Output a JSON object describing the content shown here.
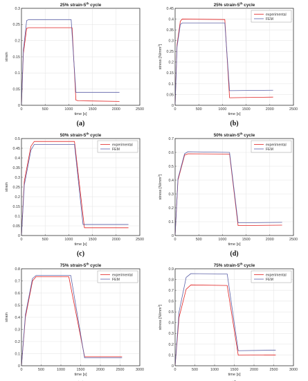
{
  "chart_data": [
    {
      "type": "line",
      "caption": "(a)",
      "title": "25% strain-5",
      "title_sup": "th",
      "title_suffix": " cycle",
      "xlabel": "time [s]",
      "ylabel": "strain",
      "xlim": [
        0,
        2500
      ],
      "ylim": [
        0,
        0.3
      ],
      "xticks": [
        0,
        500,
        1000,
        1500,
        2000,
        2500
      ],
      "yticks": [
        0,
        0.05,
        0.1,
        0.15,
        0.2,
        0.25,
        0.3
      ],
      "grid": true,
      "legend_position": "none",
      "series": [
        {
          "name": "experimental",
          "color": "#e02020",
          "x": [
            0,
            40,
            110,
            150,
            1070,
            1150,
            1200,
            2070
          ],
          "y": [
            0,
            0.16,
            0.238,
            0.24,
            0.24,
            0.016,
            0.014,
            0.012
          ]
        },
        {
          "name": "FEM",
          "color": "#5a5fa6",
          "x": [
            0,
            40,
            110,
            150,
            1050,
            1150,
            2070
          ],
          "y": [
            0,
            0.17,
            0.262,
            0.265,
            0.265,
            0.04,
            0.04
          ]
        }
      ]
    },
    {
      "type": "line",
      "caption": "(b)",
      "title": "25% strain-5",
      "title_sup": "th",
      "title_suffix": " cycle",
      "xlabel": "time [s]",
      "ylabel": "stress [N/mm",
      "ylabel_sup": "2",
      "ylabel_suffix": "]",
      "xlim": [
        0,
        2500
      ],
      "ylim": [
        0,
        0.45
      ],
      "xticks": [
        0,
        500,
        1000,
        1500,
        2000,
        2500
      ],
      "yticks": [
        0,
        0.05,
        0.1,
        0.15,
        0.2,
        0.25,
        0.3,
        0.35,
        0.4,
        0.45
      ],
      "grid": true,
      "legend_position": "top-right",
      "series": [
        {
          "name": "experimental",
          "color": "#e02020",
          "x": [
            0,
            40,
            110,
            150,
            1050,
            1150,
            2070
          ],
          "y": [
            0,
            0.28,
            0.39,
            0.4,
            0.398,
            0.035,
            0.038
          ]
        },
        {
          "name": "FEM",
          "color": "#5a5fa6",
          "x": [
            0,
            40,
            110,
            150,
            1050,
            1150,
            2070
          ],
          "y": [
            0,
            0.27,
            0.375,
            0.382,
            0.382,
            0.068,
            0.07
          ]
        }
      ]
    },
    {
      "type": "line",
      "caption": "(c)",
      "title": "50% strain-5",
      "title_sup": "th",
      "title_suffix": " cycle",
      "xlabel": "time [s]",
      "ylabel": "strain",
      "xlim": [
        0,
        2500
      ],
      "ylim": [
        0,
        0.5
      ],
      "xticks": [
        0,
        500,
        1000,
        1500,
        2000,
        2500
      ],
      "yticks": [
        0,
        0.05,
        0.1,
        0.15,
        0.2,
        0.25,
        0.3,
        0.35,
        0.4,
        0.45,
        0.5
      ],
      "grid": true,
      "legend_position": "top-right",
      "series": [
        {
          "name": "experimental",
          "color": "#e02020",
          "x": [
            0,
            60,
            200,
            270,
            1120,
            1330,
            2260
          ],
          "y": [
            0,
            0.28,
            0.46,
            0.485,
            0.485,
            0.04,
            0.04
          ]
        },
        {
          "name": "FEM",
          "color": "#5a5fa6",
          "x": [
            0,
            60,
            200,
            270,
            1120,
            1300,
            2260
          ],
          "y": [
            0,
            0.26,
            0.44,
            0.47,
            0.47,
            0.057,
            0.057
          ]
        }
      ]
    },
    {
      "type": "line",
      "caption": "(d)",
      "title": "50% strain-5",
      "title_sup": "th",
      "title_suffix": " cycle",
      "xlabel": "time [s]",
      "ylabel": "stress [N/mm",
      "ylabel_sup": "2",
      "ylabel_suffix": "]",
      "xlim": [
        0,
        2500
      ],
      "ylim": [
        0,
        0.7
      ],
      "xticks": [
        0,
        500,
        1000,
        1500,
        2000,
        2500
      ],
      "yticks": [
        0,
        0.1,
        0.2,
        0.3,
        0.4,
        0.5,
        0.6,
        0.7
      ],
      "grid": true,
      "legend_position": "top-right",
      "series": [
        {
          "name": "experimental",
          "color": "#e02020",
          "x": [
            0,
            60,
            200,
            270,
            1150,
            1330,
            2260
          ],
          "y": [
            0,
            0.4,
            0.58,
            0.59,
            0.588,
            0.072,
            0.075
          ]
        },
        {
          "name": "FEM",
          "color": "#5a5fa6",
          "x": [
            0,
            60,
            200,
            270,
            1150,
            1330,
            2260
          ],
          "y": [
            0,
            0.41,
            0.59,
            0.605,
            0.6,
            0.092,
            0.095
          ]
        }
      ]
    },
    {
      "type": "line",
      "caption": "(e)",
      "title": "75% strain-5",
      "title_sup": "th",
      "title_suffix": " cycle",
      "xlabel": "time [s]",
      "ylabel": "strain",
      "xlim": [
        0,
        3000
      ],
      "ylim": [
        0,
        0.8
      ],
      "xticks": [
        0,
        500,
        1000,
        1500,
        2000,
        2500,
        3000
      ],
      "yticks": [
        0,
        0.1,
        0.2,
        0.3,
        0.4,
        0.5,
        0.6,
        0.7,
        0.8
      ],
      "grid": true,
      "legend_position": "top-right",
      "series": [
        {
          "name": "experimental",
          "color": "#e02020",
          "x": [
            0,
            100,
            280,
            370,
            1200,
            1600,
            2550
          ],
          "y": [
            0,
            0.4,
            0.7,
            0.735,
            0.735,
            0.075,
            0.075
          ]
        },
        {
          "name": "FEM",
          "color": "#5a5fa6",
          "x": [
            0,
            100,
            280,
            370,
            1250,
            1600,
            2550
          ],
          "y": [
            0,
            0.42,
            0.72,
            0.745,
            0.745,
            0.065,
            0.065
          ]
        }
      ]
    },
    {
      "type": "line",
      "caption": "(f)",
      "title": "75% strain-5",
      "title_sup": "th",
      "title_suffix": " cycle",
      "xlabel": "time [s]",
      "ylabel": "stress [N/mm",
      "ylabel_sup": "2",
      "ylabel_suffix": "]",
      "xlim": [
        0,
        3000
      ],
      "ylim": [
        0,
        0.9
      ],
      "xticks": [
        0,
        500,
        1000,
        1500,
        2000,
        2500,
        3000
      ],
      "yticks": [
        0,
        0.1,
        0.2,
        0.3,
        0.4,
        0.5,
        0.6,
        0.7,
        0.8,
        0.9
      ],
      "grid": true,
      "legend_position": "top-right",
      "series": [
        {
          "name": "experimental",
          "color": "#e02020",
          "x": [
            0,
            100,
            280,
            400,
            1320,
            1600,
            2550
          ],
          "y": [
            0,
            0.45,
            0.71,
            0.75,
            0.745,
            0.098,
            0.1
          ]
        },
        {
          "name": "FEM",
          "color": "#5a5fa6",
          "x": [
            0,
            100,
            280,
            400,
            1320,
            1600,
            2550
          ],
          "y": [
            0,
            0.5,
            0.82,
            0.855,
            0.852,
            0.14,
            0.145
          ]
        }
      ]
    }
  ]
}
